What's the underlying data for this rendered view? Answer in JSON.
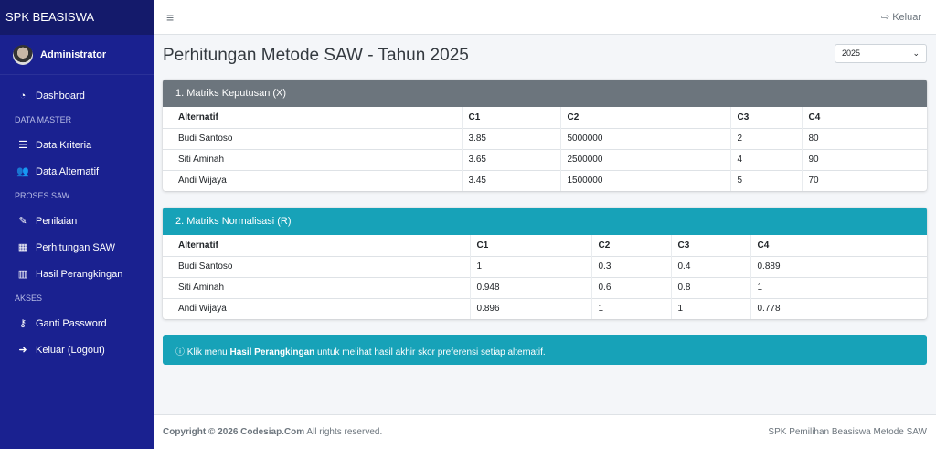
{
  "brand": "SPK BEASISWA",
  "user": "Administrator",
  "nav": [
    {
      "type": "item",
      "icon": "dashboard-icon",
      "glyph": "◔",
      "label": "Dashboard"
    },
    {
      "type": "section",
      "label": "DATA MASTER"
    },
    {
      "type": "item",
      "icon": "list-icon",
      "glyph": "☰",
      "label": "Data Kriteria"
    },
    {
      "type": "item",
      "icon": "users-icon",
      "glyph": "👥",
      "label": "Data Alternatif"
    },
    {
      "type": "section",
      "label": "PROSES SAW"
    },
    {
      "type": "item",
      "icon": "edit-icon",
      "glyph": "✎",
      "label": "Penilaian"
    },
    {
      "type": "item",
      "icon": "calculator-icon",
      "glyph": "▦",
      "label": "Perhitungan SAW"
    },
    {
      "type": "item",
      "icon": "chart-bar-icon",
      "glyph": "▥",
      "label": "Hasil Perangkingan"
    },
    {
      "type": "section",
      "label": "AKSES"
    },
    {
      "type": "item",
      "icon": "key-icon",
      "glyph": "⚷",
      "label": "Ganti Password"
    },
    {
      "type": "item",
      "icon": "sign-out-icon",
      "glyph": "➜",
      "label": "Keluar (Logout)"
    }
  ],
  "topbar": {
    "logout": "Keluar"
  },
  "page": {
    "title": "Perhitungan Metode SAW - Tahun 2025",
    "year": "2025"
  },
  "colors": {
    "sidebar": "#1a2190",
    "card1": "#6c757d",
    "card2": "#17a2b8"
  },
  "matrix_x": {
    "title": "1. Matriks Keputusan (X)",
    "headers": [
      "Alternatif",
      "C1",
      "C2",
      "C3",
      "C4"
    ],
    "rows": [
      [
        "Budi Santoso",
        "3.85",
        "5000000",
        "2",
        "80"
      ],
      [
        "Siti Aminah",
        "3.65",
        "2500000",
        "4",
        "90"
      ],
      [
        "Andi Wijaya",
        "3.45",
        "1500000",
        "5",
        "70"
      ]
    ]
  },
  "matrix_r": {
    "title": "2. Matriks Normalisasi (R)",
    "headers": [
      "Alternatif",
      "C1",
      "C2",
      "C3",
      "C4"
    ],
    "rows": [
      [
        "Budi Santoso",
        "1",
        "0.3",
        "0.4",
        "0.889"
      ],
      [
        "Siti Aminah",
        "0.948",
        "0.6",
        "0.8",
        "1"
      ],
      [
        "Andi Wijaya",
        "0.896",
        "1",
        "1",
        "0.778"
      ]
    ]
  },
  "alert": {
    "pre": "Klik menu ",
    "bold": "Hasil Perangkingan",
    "post": " untuk melihat hasil akhir skor preferensi setiap alternatif."
  },
  "footer": {
    "copyright": "Copyright © 2026 Codesiap.Com",
    "rights": " All rights reserved.",
    "right": "SPK Pemilihan Beasiswa Metode SAW"
  }
}
